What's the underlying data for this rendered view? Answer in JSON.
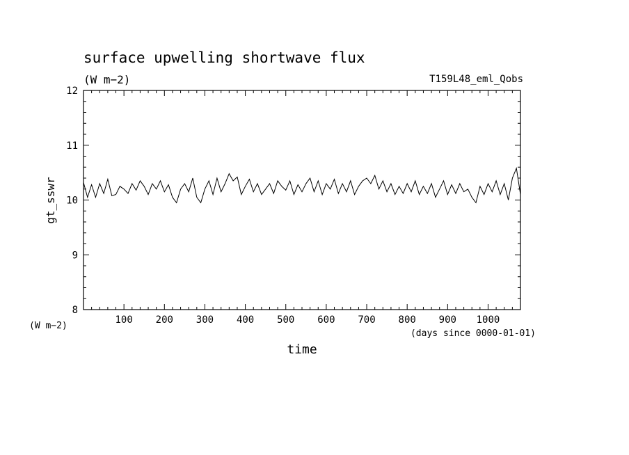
{
  "chart_data": {
    "type": "line",
    "title": "surface upwelling shortwave flux",
    "subtitle": "(W m−2)",
    "run_label": "T159L48_eml_Qobs",
    "xlabel": "time",
    "x_units": "(days since 0000-01-01)",
    "ylabel": "gt_sswr",
    "y_units": "(W m−2)",
    "xlim": [
      0,
      1080
    ],
    "ylim": [
      8,
      12
    ],
    "x_ticks": [
      100,
      200,
      300,
      400,
      500,
      600,
      700,
      800,
      900,
      1000
    ],
    "y_ticks": [
      8,
      9,
      10,
      11,
      12
    ],
    "grid": false,
    "series": [
      {
        "values": [
          [
            0,
            10.32
          ],
          [
            10,
            10.05
          ],
          [
            20,
            10.28
          ],
          [
            30,
            10.05
          ],
          [
            40,
            10.3
          ],
          [
            50,
            10.12
          ],
          [
            60,
            10.38
          ],
          [
            70,
            10.08
          ],
          [
            80,
            10.1
          ],
          [
            90,
            10.25
          ],
          [
            100,
            10.2
          ],
          [
            110,
            10.12
          ],
          [
            120,
            10.3
          ],
          [
            130,
            10.18
          ],
          [
            140,
            10.35
          ],
          [
            150,
            10.25
          ],
          [
            160,
            10.1
          ],
          [
            170,
            10.3
          ],
          [
            180,
            10.2
          ],
          [
            190,
            10.35
          ],
          [
            200,
            10.15
          ],
          [
            210,
            10.28
          ],
          [
            220,
            10.05
          ],
          [
            230,
            9.95
          ],
          [
            240,
            10.2
          ],
          [
            250,
            10.3
          ],
          [
            260,
            10.15
          ],
          [
            270,
            10.4
          ],
          [
            280,
            10.05
          ],
          [
            290,
            9.95
          ],
          [
            300,
            10.2
          ],
          [
            310,
            10.35
          ],
          [
            320,
            10.1
          ],
          [
            330,
            10.4
          ],
          [
            340,
            10.15
          ],
          [
            350,
            10.3
          ],
          [
            360,
            10.48
          ],
          [
            370,
            10.35
          ],
          [
            380,
            10.42
          ],
          [
            390,
            10.1
          ],
          [
            400,
            10.25
          ],
          [
            410,
            10.38
          ],
          [
            420,
            10.15
          ],
          [
            430,
            10.3
          ],
          [
            440,
            10.1
          ],
          [
            450,
            10.2
          ],
          [
            460,
            10.3
          ],
          [
            470,
            10.12
          ],
          [
            480,
            10.35
          ],
          [
            490,
            10.25
          ],
          [
            500,
            10.18
          ],
          [
            510,
            10.35
          ],
          [
            520,
            10.1
          ],
          [
            530,
            10.28
          ],
          [
            540,
            10.15
          ],
          [
            550,
            10.3
          ],
          [
            560,
            10.4
          ],
          [
            570,
            10.15
          ],
          [
            580,
            10.35
          ],
          [
            590,
            10.1
          ],
          [
            600,
            10.3
          ],
          [
            610,
            10.2
          ],
          [
            620,
            10.38
          ],
          [
            630,
            10.12
          ],
          [
            640,
            10.3
          ],
          [
            650,
            10.15
          ],
          [
            660,
            10.35
          ],
          [
            670,
            10.1
          ],
          [
            680,
            10.25
          ],
          [
            690,
            10.35
          ],
          [
            700,
            10.4
          ],
          [
            710,
            10.3
          ],
          [
            720,
            10.45
          ],
          [
            730,
            10.2
          ],
          [
            740,
            10.35
          ],
          [
            750,
            10.15
          ],
          [
            760,
            10.3
          ],
          [
            770,
            10.1
          ],
          [
            780,
            10.25
          ],
          [
            790,
            10.12
          ],
          [
            800,
            10.3
          ],
          [
            810,
            10.15
          ],
          [
            820,
            10.35
          ],
          [
            830,
            10.1
          ],
          [
            840,
            10.25
          ],
          [
            850,
            10.12
          ],
          [
            860,
            10.3
          ],
          [
            870,
            10.05
          ],
          [
            880,
            10.2
          ],
          [
            890,
            10.35
          ],
          [
            900,
            10.1
          ],
          [
            910,
            10.28
          ],
          [
            920,
            10.12
          ],
          [
            930,
            10.3
          ],
          [
            940,
            10.15
          ],
          [
            950,
            10.2
          ],
          [
            960,
            10.05
          ],
          [
            970,
            9.95
          ],
          [
            980,
            10.25
          ],
          [
            990,
            10.1
          ],
          [
            1000,
            10.3
          ],
          [
            1010,
            10.15
          ],
          [
            1020,
            10.35
          ],
          [
            1030,
            10.1
          ],
          [
            1040,
            10.3
          ],
          [
            1050,
            10.0
          ],
          [
            1060,
            10.4
          ],
          [
            1070,
            10.58
          ],
          [
            1080,
            10.1
          ]
        ]
      }
    ]
  }
}
